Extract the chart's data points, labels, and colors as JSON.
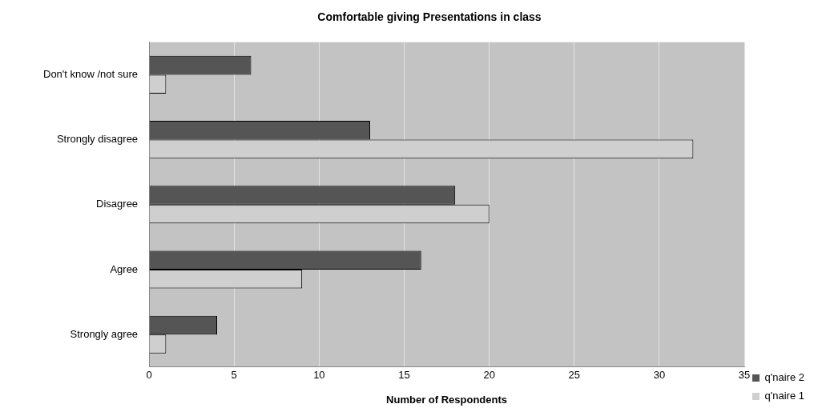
{
  "chart_data": {
    "type": "bar",
    "orientation": "horizontal",
    "title": "Comfortable giving Presentations in class",
    "xlabel": "Number of Respondents",
    "categories": [
      "Don't know /not sure",
      "Strongly disagree",
      "Disagree",
      "Agree",
      "Strongly agree"
    ],
    "series": [
      {
        "name": "q'naire 2",
        "color": "#555555",
        "values": [
          6,
          13,
          18,
          16,
          4
        ]
      },
      {
        "name": "q'naire 1",
        "color": "#cfcfcf",
        "values": [
          1,
          32,
          20,
          9,
          1
        ]
      }
    ],
    "xlim": [
      0,
      35
    ],
    "xticks": [
      0,
      5,
      10,
      15,
      20,
      25,
      30,
      35
    ],
    "grid": "x",
    "legend": "bottom right"
  }
}
